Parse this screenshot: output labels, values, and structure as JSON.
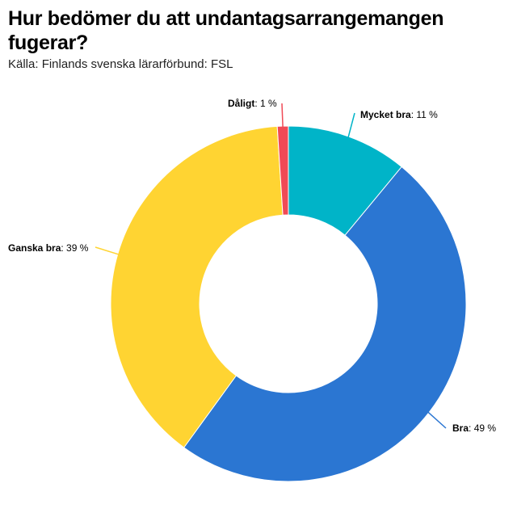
{
  "header": {
    "title": "Hur bedömer du att undantagsarrangemangen fugerar?",
    "source": "Källa: Finlands svenska lärarförbund: FSL"
  },
  "chart_data": {
    "type": "donut",
    "title": "Hur bedömer du att undantagsarrangemangen fugerar?",
    "subtitle": "Källa: Finlands svenska lärarförbund: FSL",
    "unit": "%",
    "slices": [
      {
        "name": "Mycket bra",
        "value": 11,
        "label": "11 %",
        "color": "#00b4c8"
      },
      {
        "name": "Bra",
        "value": 49,
        "label": "49 %",
        "color": "#2b76d2"
      },
      {
        "name": "Ganska bra",
        "value": 39,
        "label": "39 %",
        "color": "#ffd432"
      },
      {
        "name": "Dåligt",
        "value": 1,
        "label": "1 %",
        "color": "#f04a56"
      }
    ]
  }
}
